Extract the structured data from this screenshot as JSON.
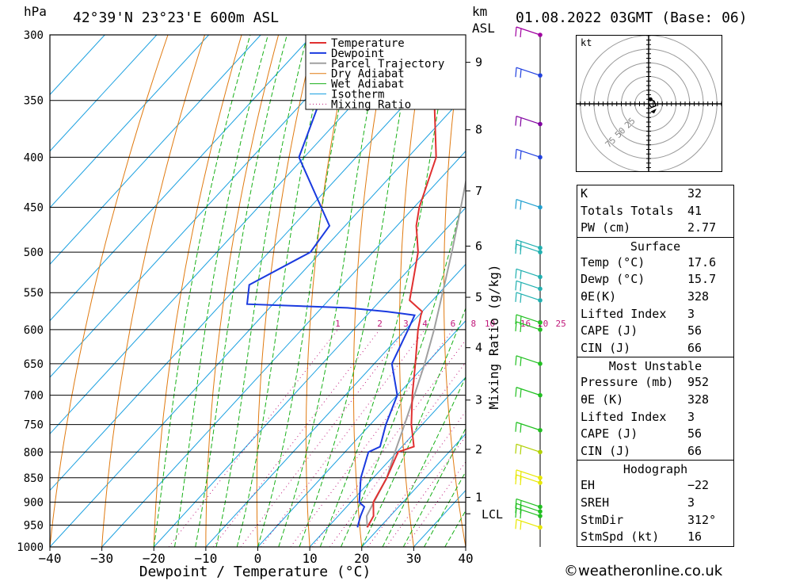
{
  "header": {
    "pressure_unit": "hPa",
    "location": "42°39'N  23°23'E  600m  ASL",
    "height_unit": "km",
    "height_unit2": "ASL",
    "datetime": "01.08.2022  03GMT  (Base: 06)"
  },
  "colors": {
    "temperature": "#e03030",
    "dewpoint": "#1a3adf",
    "parcel": "#a0a0a0",
    "dry_adiabat": "#e07a10",
    "wet_adiabat": "#18b018",
    "isotherm": "#1aa0e0",
    "mixing_ratio": "#c0187a"
  },
  "chart_data": {
    "type": "line",
    "xlabel": "Dewpoint / Temperature (°C)",
    "ylabel": "",
    "xlim": [
      -40,
      40
    ],
    "ylim": [
      1000,
      300
    ],
    "y_scale": "log",
    "grid": true,
    "legend": "top-right",
    "x_ticks": [
      "−40",
      "−30",
      "−20",
      "−10",
      "0",
      "10",
      "20",
      "30",
      "40"
    ],
    "y_ticks": [
      300,
      350,
      400,
      450,
      500,
      550,
      600,
      650,
      700,
      750,
      800,
      850,
      900,
      950,
      1000
    ],
    "height_ticks": [
      {
        "label": "9",
        "p": 320
      },
      {
        "label": "8",
        "p": 375
      },
      {
        "label": "7",
        "p": 433
      },
      {
        "label": "6",
        "p": 493
      },
      {
        "label": "5",
        "p": 556
      },
      {
        "label": "4",
        "p": 626
      },
      {
        "label": "3",
        "p": 708
      },
      {
        "label": "2",
        "p": 795
      },
      {
        "label": "1",
        "p": 890
      }
    ],
    "lcl_label": "LCL",
    "lcl_p": 925,
    "mixing_ratio_title": "Mixing Ratio (g/kg)",
    "mixing_ratio_labels": [
      "1",
      "2",
      "3",
      "4",
      "6",
      "8",
      "10",
      "16",
      "20",
      "25"
    ],
    "legend_entries": [
      "Temperature",
      "Dewpoint",
      "Parcel Trajectory",
      "Dry Adiabat",
      "Wet Adiabat",
      "Isotherm",
      "Mixing Ratio"
    ],
    "series": [
      {
        "name": "Temperature",
        "points": [
          [
            955,
            17.6
          ],
          [
            930,
            16.8
          ],
          [
            900,
            14.3
          ],
          [
            850,
            12.6
          ],
          [
            800,
            10.2
          ],
          [
            790,
            12.3
          ],
          [
            750,
            7.9
          ],
          [
            700,
            2.9
          ],
          [
            650,
            -2.1
          ],
          [
            600,
            -7.6
          ],
          [
            580,
            -9.6
          ],
          [
            575,
            -10.0
          ],
          [
            560,
            -14.4
          ],
          [
            540,
            -16.6
          ],
          [
            500,
            -21.3
          ],
          [
            470,
            -26.3
          ],
          [
            450,
            -29.0
          ],
          [
            400,
            -34.6
          ],
          [
            350,
            -45.0
          ],
          [
            310,
            -55.0
          ],
          [
            300,
            -57.0
          ]
        ]
      },
      {
        "name": "Dewpoint",
        "points": [
          [
            955,
            15.7
          ],
          [
            930,
            14.3
          ],
          [
            910,
            13.4
          ],
          [
            900,
            11.6
          ],
          [
            850,
            7.6
          ],
          [
            800,
            4.5
          ],
          [
            790,
            5.8
          ],
          [
            750,
            3.0
          ],
          [
            700,
            0.0
          ],
          [
            650,
            -6.6
          ],
          [
            600,
            -9.5
          ],
          [
            580,
            -10.8
          ],
          [
            575,
            -16.8
          ],
          [
            570,
            -25.0
          ],
          [
            565,
            -45.0
          ],
          [
            540,
            -48.0
          ],
          [
            500,
            -42.0
          ],
          [
            470,
            -43.0
          ],
          [
            400,
            -61.0
          ],
          [
            320,
            -71.0
          ],
          [
            300,
            -75.0
          ]
        ]
      },
      {
        "name": "Parcel Trajectory",
        "points": [
          [
            955,
            17.6
          ],
          [
            930,
            15.5
          ],
          [
            900,
            14.4
          ],
          [
            850,
            12.6
          ],
          [
            800,
            9.6
          ],
          [
            750,
            6.6
          ],
          [
            700,
            3.3
          ],
          [
            650,
            -0.3
          ],
          [
            600,
            -4.5
          ],
          [
            550,
            -9.4
          ],
          [
            500,
            -14.8
          ],
          [
            450,
            -21.0
          ],
          [
            400,
            -28.0
          ],
          [
            350,
            -36.0
          ],
          [
            300,
            -45.0
          ]
        ]
      }
    ],
    "wind_barbs": [
      {
        "p": 955,
        "color": "#e8e800"
      },
      {
        "p": 930,
        "color": "#20c020"
      },
      {
        "p": 920,
        "color": "#20c020"
      },
      {
        "p": 910,
        "color": "#20c020"
      },
      {
        "p": 860,
        "color": "#e8e800"
      },
      {
        "p": 850,
        "color": "#e8e800"
      },
      {
        "p": 800,
        "color": "#b0d000"
      },
      {
        "p": 760,
        "color": "#20c020"
      },
      {
        "p": 700,
        "color": "#20c020"
      },
      {
        "p": 650,
        "color": "#20c020"
      },
      {
        "p": 600,
        "color": "#20c020"
      },
      {
        "p": 590,
        "color": "#20c020"
      },
      {
        "p": 560,
        "color": "#20b0b0"
      },
      {
        "p": 545,
        "color": "#20b0b0"
      },
      {
        "p": 530,
        "color": "#20b0b0"
      },
      {
        "p": 500,
        "color": "#20b0b0"
      },
      {
        "p": 495,
        "color": "#20b0b0"
      },
      {
        "p": 450,
        "color": "#20a0d0"
      },
      {
        "p": 400,
        "color": "#2040e0"
      },
      {
        "p": 370,
        "color": "#8000a0"
      },
      {
        "p": 330,
        "color": "#2040e0"
      },
      {
        "p": 300,
        "color": "#a000a0"
      }
    ],
    "hodograph": {
      "unit": "kt",
      "ring_labels": [
        "25",
        "50",
        "75"
      ],
      "trace": [
        [
          0,
          0
        ],
        [
          3,
          -4
        ],
        [
          8,
          -2
        ],
        [
          6,
          3
        ],
        [
          2,
          5
        ]
      ]
    }
  },
  "indices": {
    "general": [
      {
        "label": "K",
        "value": "32"
      },
      {
        "label": "Totals Totals",
        "value": "41"
      },
      {
        "label": "PW (cm)",
        "value": "2.77"
      }
    ],
    "surface": {
      "title": "Surface",
      "rows": [
        {
          "label": "Temp (°C)",
          "value": "17.6"
        },
        {
          "label": "Dewp (°C)",
          "value": "15.7"
        },
        {
          "label": "θE(K)",
          "value": "328"
        },
        {
          "label": "Lifted Index",
          "value": "3"
        },
        {
          "label": "CAPE (J)",
          "value": "56"
        },
        {
          "label": "CIN (J)",
          "value": "66"
        }
      ]
    },
    "most_unstable": {
      "title": "Most Unstable",
      "rows": [
        {
          "label": "Pressure (mb)",
          "value": "952"
        },
        {
          "label": "θE (K)",
          "value": "328"
        },
        {
          "label": "Lifted Index",
          "value": "3"
        },
        {
          "label": "CAPE (J)",
          "value": "56"
        },
        {
          "label": "CIN (J)",
          "value": "66"
        }
      ]
    },
    "hodograph": {
      "title": "Hodograph",
      "rows": [
        {
          "label": "EH",
          "value": "−22"
        },
        {
          "label": "SREH",
          "value": "3"
        },
        {
          "label": "StmDir",
          "value": "312°"
        },
        {
          "label": "StmSpd (kt)",
          "value": "16"
        }
      ]
    }
  },
  "footer": {
    "copyright": "©weatheronline.co.uk"
  }
}
